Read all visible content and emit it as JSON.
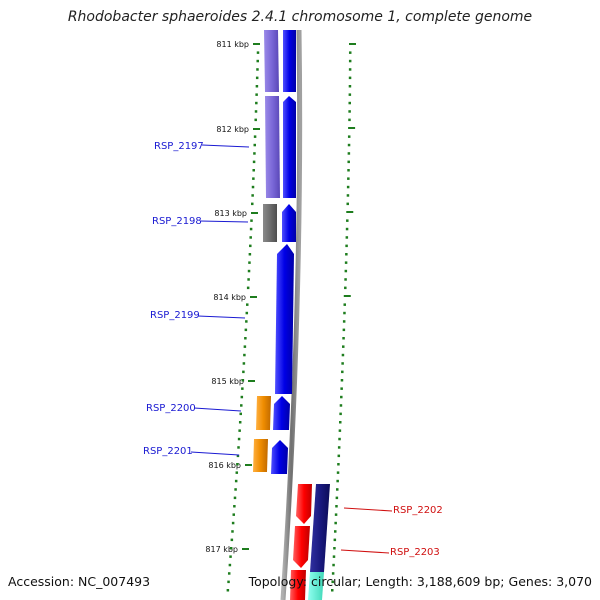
{
  "map": {
    "title": "Rhodobacter sphaeroides 2.4.1 chromosome 1, complete genome",
    "accession": "Accession: NC_007493",
    "topology": "Topology: circular;",
    "length": "Length: 3,188,609 bp;",
    "genes_count": "Genes: 3,070",
    "kbp_labels": [
      "811 kbp",
      "812 kbp",
      "813 kbp",
      "814 kbp",
      "815 kbp",
      "816 kbp",
      "817 kbp"
    ],
    "genes": [
      {
        "name": "RSP_2197",
        "strand": "left",
        "color": "#1a1ad2"
      },
      {
        "name": "RSP_2198",
        "strand": "left",
        "color": "#1a1ad2"
      },
      {
        "name": "RSP_2199",
        "strand": "left",
        "color": "#1a1ad2"
      },
      {
        "name": "RSP_2200",
        "strand": "left",
        "color": "#1a1ad2"
      },
      {
        "name": "RSP_2201",
        "strand": "left",
        "color": "#1a1ad2"
      },
      {
        "name": "RSP_2202",
        "strand": "right",
        "color": "#d01010"
      },
      {
        "name": "RSP_2203",
        "strand": "right",
        "color": "#d01010"
      }
    ],
    "colors": {
      "forward_cds": "#0000e6",
      "reverse_cds": "#ff0000",
      "cog_purple": "#7b68d8",
      "cog_gray": "#6e6e6e",
      "cog_orange": "#ef8c00",
      "cog_navy": "#1a1a80",
      "cog_teal": "#48e8c8",
      "tick": "#1e7d1e",
      "backbone": "#7a7a7a"
    }
  }
}
